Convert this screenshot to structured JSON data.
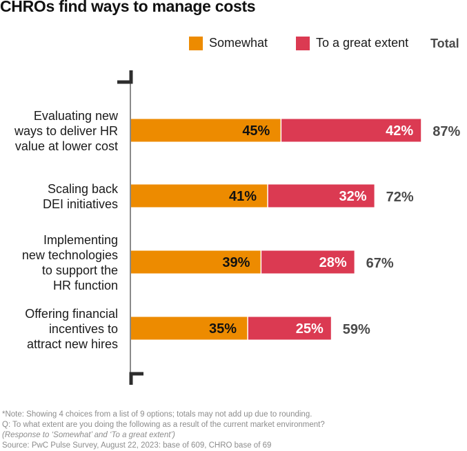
{
  "title": "CHROs find ways to manage costs",
  "legend": {
    "somewhat": "Somewhat",
    "great": "To a great extent",
    "total": "Total"
  },
  "colors": {
    "somewhat": "#ED8B00",
    "great": "#DB3A52",
    "axis": "#8a8a8a",
    "marker": "#2d2d2d",
    "total_text": "#4a4a4a"
  },
  "chart_data": {
    "type": "bar",
    "orientation": "horizontal",
    "stacked": true,
    "title": "CHROs find ways to manage costs",
    "categories": [
      "Evaluating new ways to deliver HR value at lower cost",
      "Scaling back DEI initiatives",
      "Implementing new technologies to support the HR function",
      "Offering financial incentives to attract new hires"
    ],
    "category_lines": [
      "Evaluating new\nways to deliver HR\nvalue at lower cost",
      "Scaling back\nDEI initiatives",
      "Implementing\nnew technologies\nto support the\nHR function",
      "Offering financial\nincentives to\nattract new hires"
    ],
    "series": [
      {
        "name": "Somewhat",
        "values": [
          45,
          41,
          39,
          35
        ],
        "labels": [
          "45%",
          "41%",
          "39%",
          "35%"
        ]
      },
      {
        "name": "To a great extent",
        "values": [
          42,
          32,
          28,
          25
        ],
        "labels": [
          "42%",
          "32%",
          "28%",
          "25%"
        ]
      }
    ],
    "totals": [
      87,
      72,
      67,
      59
    ],
    "total_labels": [
      "87%",
      "72%",
      "67%",
      "59%"
    ],
    "xlim": [
      0,
      90
    ],
    "xlabel": "",
    "ylabel": "",
    "legend_position": "top-right",
    "grid": false
  },
  "footnotes": [
    "*Note: Showing 4 choices from a list of 9 options; totals may not add up due to rounding.",
    "Q: To what extent are you doing the following as a result of the current market environment?",
    "(Response to ‘Somewhat’ and ‘To a great extent’)",
    "Source: PwC Pulse Survey, August 22, 2023: base of 609, CHRO base of 69"
  ]
}
